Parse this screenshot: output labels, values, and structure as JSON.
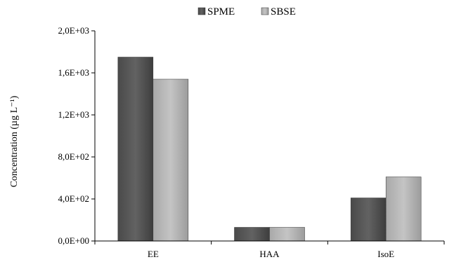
{
  "chart_data": {
    "type": "bar",
    "categories": [
      "EE",
      "HAA",
      "IsoE"
    ],
    "series": [
      {
        "name": "SPME",
        "values": [
          1750,
          130,
          410
        ],
        "color": "#555555"
      },
      {
        "name": "SBSE",
        "values": [
          1540,
          130,
          610
        ],
        "color": "#b8b8b8"
      }
    ],
    "ylabel": "Concentration (µg L⁻¹)",
    "ylim": [
      0,
      2000
    ],
    "yticks": [
      0,
      400,
      800,
      1200,
      1600,
      2000
    ],
    "ytick_labels": [
      "0,0E+00",
      "4,0E+02",
      "8,0E+02",
      "1,2E+03",
      "1,6E+03",
      "2,0E+03"
    ],
    "grid": false,
    "legend_position": "top-center"
  }
}
